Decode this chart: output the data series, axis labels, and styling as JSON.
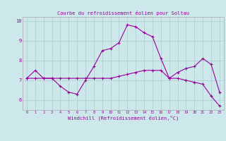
{
  "title": "Courbe du refroidissement éolien pour Soltau",
  "xlabel": "Windchill (Refroidissement éolien,°C)",
  "background_color": "#cce8ea",
  "grid_color": "#aacccc",
  "line_color": "#990099",
  "x_hours": [
    0,
    1,
    2,
    3,
    4,
    5,
    6,
    7,
    8,
    9,
    10,
    11,
    12,
    13,
    14,
    15,
    16,
    17,
    18,
    19,
    20,
    21,
    22,
    23
  ],
  "series1": [
    7.1,
    7.5,
    7.1,
    7.1,
    6.7,
    6.4,
    6.3,
    7.0,
    7.7,
    8.5,
    8.6,
    8.9,
    9.8,
    9.7,
    9.4,
    9.2,
    8.1,
    7.1,
    7.4,
    7.6,
    7.7,
    8.1,
    7.8,
    6.4
  ],
  "series2": [
    7.1,
    7.1,
    7.1,
    7.1,
    7.1,
    7.1,
    7.1,
    7.1,
    7.1,
    7.1,
    7.1,
    7.2,
    7.3,
    7.4,
    7.5,
    7.5,
    7.5,
    7.1,
    7.1,
    7.0,
    6.9,
    6.8,
    6.2,
    5.7
  ],
  "ylim": [
    5.5,
    10.2
  ],
  "xlim": [
    -0.5,
    23.5
  ],
  "yticks": [
    6,
    7,
    8,
    9,
    10
  ],
  "ytick_labels": [
    "6",
    "7",
    "8",
    "9",
    "10"
  ]
}
